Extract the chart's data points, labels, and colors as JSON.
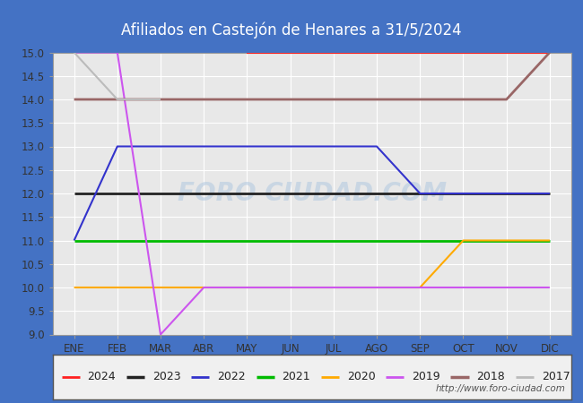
{
  "title": "Afiliados en Castejón de Henares a 31/5/2024",
  "ylim": [
    9.0,
    15.0
  ],
  "yticks": [
    9.0,
    9.5,
    10.0,
    10.5,
    11.0,
    11.5,
    12.0,
    12.5,
    13.0,
    13.5,
    14.0,
    14.5,
    15.0
  ],
  "months": [
    "ENE",
    "FEB",
    "MAR",
    "ABR",
    "MAY",
    "JUN",
    "JUL",
    "AGO",
    "SEP",
    "OCT",
    "NOV",
    "DIC"
  ],
  "fig_bg_color": "#4472c4",
  "plot_bg_color": "#e8e8e8",
  "grid_color": "#ffffff",
  "legend_bg_color": "#f0f0f0",
  "watermark": "FORO CIUDAD.COM",
  "url": "http://www.foro-ciudad.com",
  "series": [
    {
      "label": "2024",
      "color": "#ff2020",
      "data": [
        null,
        null,
        null,
        null,
        15.0,
        null,
        null,
        null,
        null,
        null,
        null,
        15.0
      ],
      "linewidth": 1.5
    },
    {
      "label": "2023",
      "color": "#222222",
      "data": [
        12.0,
        12.0,
        12.0,
        12.0,
        12.0,
        12.0,
        12.0,
        12.0,
        12.0,
        12.0,
        12.0,
        12.0
      ],
      "linewidth": 2.0
    },
    {
      "label": "2022",
      "color": "#3333cc",
      "data": [
        11.0,
        13.0,
        13.0,
        13.0,
        13.0,
        13.0,
        13.0,
        13.0,
        12.0,
        12.0,
        12.0,
        12.0
      ],
      "linewidth": 1.5
    },
    {
      "label": "2021",
      "color": "#00bb00",
      "data": [
        11.0,
        11.0,
        11.0,
        11.0,
        11.0,
        11.0,
        11.0,
        11.0,
        11.0,
        11.0,
        11.0,
        11.0
      ],
      "linewidth": 2.0
    },
    {
      "label": "2020",
      "color": "#ffaa00",
      "data": [
        10.0,
        10.0,
        10.0,
        10.0,
        10.0,
        10.0,
        10.0,
        10.0,
        10.0,
        11.0,
        11.0,
        11.0
      ],
      "linewidth": 1.5
    },
    {
      "label": "2019",
      "color": "#cc55ee",
      "data": [
        15.0,
        15.0,
        9.0,
        10.0,
        10.0,
        10.0,
        10.0,
        10.0,
        10.0,
        10.0,
        10.0,
        10.0
      ],
      "linewidth": 1.5
    },
    {
      "label": "2018",
      "color": "#996666",
      "data": [
        14.0,
        14.0,
        14.0,
        14.0,
        14.0,
        14.0,
        14.0,
        14.0,
        14.0,
        14.0,
        14.0,
        15.0
      ],
      "linewidth": 2.0
    },
    {
      "label": "2017",
      "color": "#bbbbbb",
      "data": [
        15.0,
        14.0,
        14.0,
        null,
        null,
        null,
        null,
        null,
        null,
        null,
        null,
        null
      ],
      "linewidth": 1.5
    }
  ]
}
